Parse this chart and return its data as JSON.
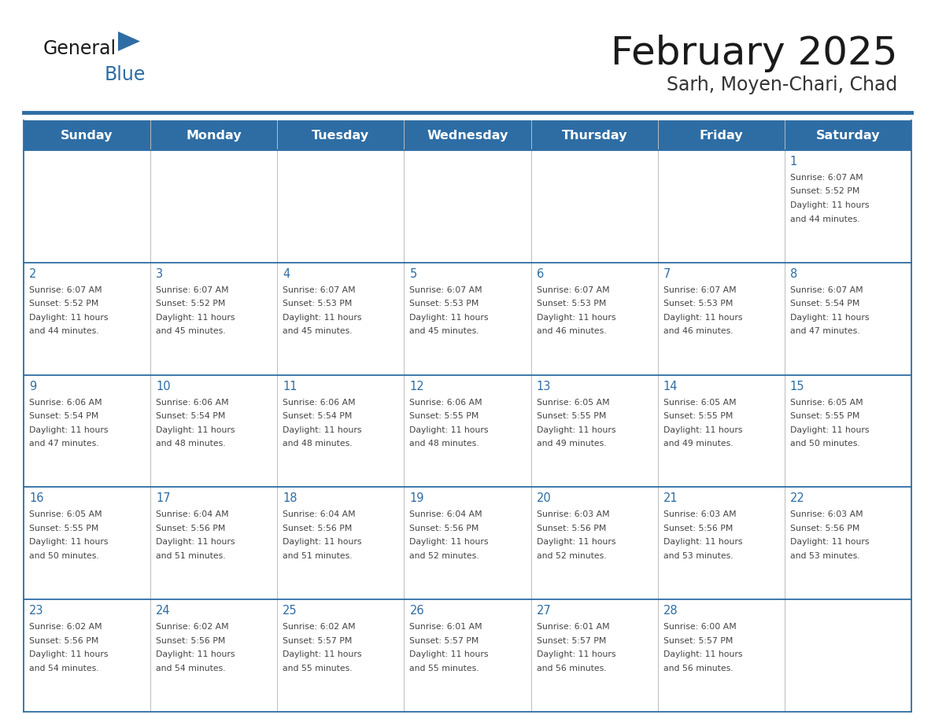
{
  "title": "February 2025",
  "subtitle": "Sarh, Moyen-Chari, Chad",
  "header_bg_color": "#2E6DA4",
  "header_text_color": "#FFFFFF",
  "day_number_color": "#2E6DA4",
  "border_color": "#2E6DA4",
  "cell_border_color": "#999999",
  "text_color": "#333333",
  "days_of_week": [
    "Sunday",
    "Monday",
    "Tuesday",
    "Wednesday",
    "Thursday",
    "Friday",
    "Saturday"
  ],
  "weeks": [
    [
      {
        "day": null
      },
      {
        "day": null
      },
      {
        "day": null
      },
      {
        "day": null
      },
      {
        "day": null
      },
      {
        "day": null
      },
      {
        "day": 1,
        "sunrise": "6:07 AM",
        "sunset": "5:52 PM",
        "daylight": "11 hours and 44 minutes."
      }
    ],
    [
      {
        "day": 2,
        "sunrise": "6:07 AM",
        "sunset": "5:52 PM",
        "daylight": "11 hours and 44 minutes."
      },
      {
        "day": 3,
        "sunrise": "6:07 AM",
        "sunset": "5:52 PM",
        "daylight": "11 hours and 45 minutes."
      },
      {
        "day": 4,
        "sunrise": "6:07 AM",
        "sunset": "5:53 PM",
        "daylight": "11 hours and 45 minutes."
      },
      {
        "day": 5,
        "sunrise": "6:07 AM",
        "sunset": "5:53 PM",
        "daylight": "11 hours and 45 minutes."
      },
      {
        "day": 6,
        "sunrise": "6:07 AM",
        "sunset": "5:53 PM",
        "daylight": "11 hours and 46 minutes."
      },
      {
        "day": 7,
        "sunrise": "6:07 AM",
        "sunset": "5:53 PM",
        "daylight": "11 hours and 46 minutes."
      },
      {
        "day": 8,
        "sunrise": "6:07 AM",
        "sunset": "5:54 PM",
        "daylight": "11 hours and 47 minutes."
      }
    ],
    [
      {
        "day": 9,
        "sunrise": "6:06 AM",
        "sunset": "5:54 PM",
        "daylight": "11 hours and 47 minutes."
      },
      {
        "day": 10,
        "sunrise": "6:06 AM",
        "sunset": "5:54 PM",
        "daylight": "11 hours and 48 minutes."
      },
      {
        "day": 11,
        "sunrise": "6:06 AM",
        "sunset": "5:54 PM",
        "daylight": "11 hours and 48 minutes."
      },
      {
        "day": 12,
        "sunrise": "6:06 AM",
        "sunset": "5:55 PM",
        "daylight": "11 hours and 48 minutes."
      },
      {
        "day": 13,
        "sunrise": "6:05 AM",
        "sunset": "5:55 PM",
        "daylight": "11 hours and 49 minutes."
      },
      {
        "day": 14,
        "sunrise": "6:05 AM",
        "sunset": "5:55 PM",
        "daylight": "11 hours and 49 minutes."
      },
      {
        "day": 15,
        "sunrise": "6:05 AM",
        "sunset": "5:55 PM",
        "daylight": "11 hours and 50 minutes."
      }
    ],
    [
      {
        "day": 16,
        "sunrise": "6:05 AM",
        "sunset": "5:55 PM",
        "daylight": "11 hours and 50 minutes."
      },
      {
        "day": 17,
        "sunrise": "6:04 AM",
        "sunset": "5:56 PM",
        "daylight": "11 hours and 51 minutes."
      },
      {
        "day": 18,
        "sunrise": "6:04 AM",
        "sunset": "5:56 PM",
        "daylight": "11 hours and 51 minutes."
      },
      {
        "day": 19,
        "sunrise": "6:04 AM",
        "sunset": "5:56 PM",
        "daylight": "11 hours and 52 minutes."
      },
      {
        "day": 20,
        "sunrise": "6:03 AM",
        "sunset": "5:56 PM",
        "daylight": "11 hours and 52 minutes."
      },
      {
        "day": 21,
        "sunrise": "6:03 AM",
        "sunset": "5:56 PM",
        "daylight": "11 hours and 53 minutes."
      },
      {
        "day": 22,
        "sunrise": "6:03 AM",
        "sunset": "5:56 PM",
        "daylight": "11 hours and 53 minutes."
      }
    ],
    [
      {
        "day": 23,
        "sunrise": "6:02 AM",
        "sunset": "5:56 PM",
        "daylight": "11 hours and 54 minutes."
      },
      {
        "day": 24,
        "sunrise": "6:02 AM",
        "sunset": "5:56 PM",
        "daylight": "11 hours and 54 minutes."
      },
      {
        "day": 25,
        "sunrise": "6:02 AM",
        "sunset": "5:57 PM",
        "daylight": "11 hours and 55 minutes."
      },
      {
        "day": 26,
        "sunrise": "6:01 AM",
        "sunset": "5:57 PM",
        "daylight": "11 hours and 55 minutes."
      },
      {
        "day": 27,
        "sunrise": "6:01 AM",
        "sunset": "5:57 PM",
        "daylight": "11 hours and 56 minutes."
      },
      {
        "day": 28,
        "sunrise": "6:00 AM",
        "sunset": "5:57 PM",
        "daylight": "11 hours and 56 minutes."
      },
      {
        "day": null
      }
    ]
  ]
}
